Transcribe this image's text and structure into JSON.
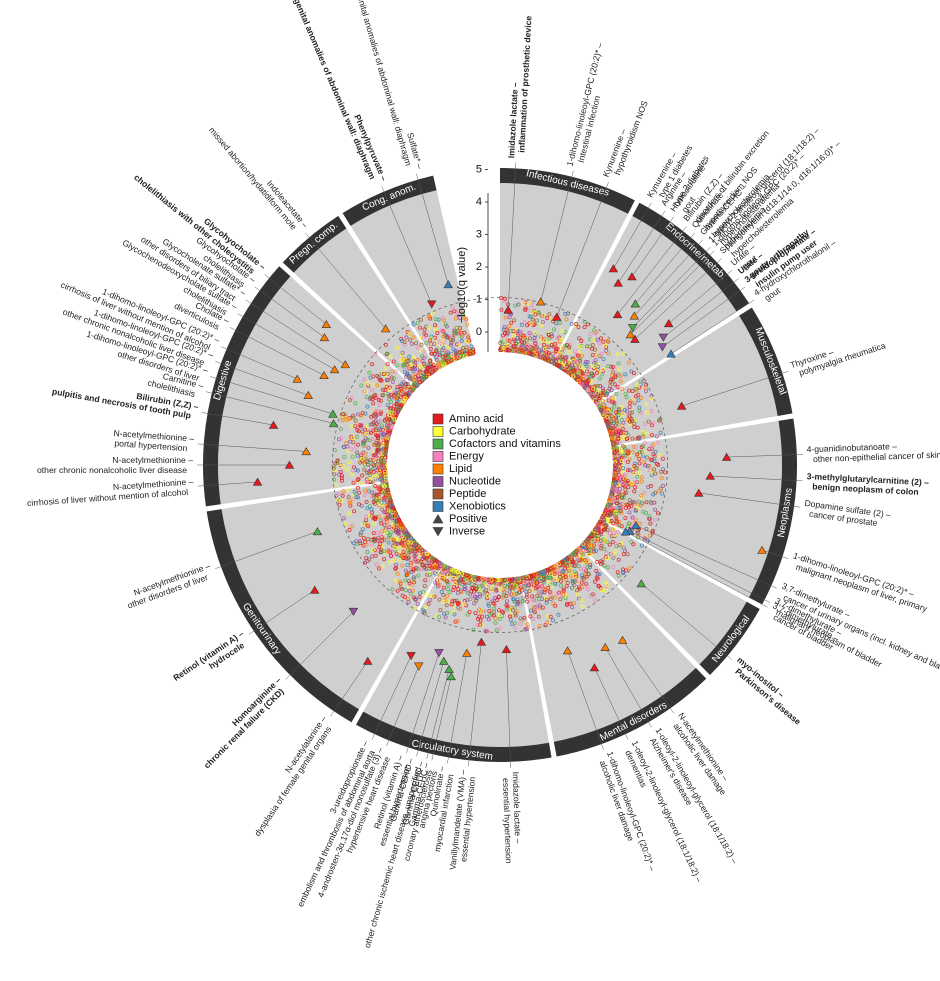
{
  "chart_data": {
    "type": "circular-manhattan",
    "y_axis_label": "−log10(q value)",
    "y_ticks": [
      0,
      1,
      2,
      3,
      4,
      5
    ],
    "y_range": [
      0,
      5.2
    ],
    "threshold": 1,
    "legend": {
      "categories": [
        {
          "name": "Amino acid",
          "color": "#e41a1c"
        },
        {
          "name": "Carbohydrate",
          "color": "#ffff33"
        },
        {
          "name": "Cofactors and vitamins",
          "color": "#4daf4a"
        },
        {
          "name": "Energy",
          "color": "#f781bf"
        },
        {
          "name": "Lipid",
          "color": "#ff7f00"
        },
        {
          "name": "Nucleotide",
          "color": "#984ea3"
        },
        {
          "name": "Peptide",
          "color": "#a65628"
        },
        {
          "name": "Xenobiotics",
          "color": "#377eb8"
        }
      ],
      "directions": [
        {
          "name": "Positive",
          "shape": "triangle-up"
        },
        {
          "name": "Inverse",
          "shape": "triangle-down"
        }
      ]
    },
    "segments": [
      {
        "name": "Infectious diseases",
        "start": 0,
        "end": 27
      },
      {
        "name": "Endocrine/metab.",
        "start": 28,
        "end": 57
      },
      {
        "name": "Musculoskeletal",
        "start": 58,
        "end": 80
      },
      {
        "name": "Neoplasms",
        "start": 81,
        "end": 118
      },
      {
        "name": "Neurological",
        "start": 119,
        "end": 135
      },
      {
        "name": "Mental disorders",
        "start": 136,
        "end": 169
      },
      {
        "name": "Circulatory system",
        "start": 170,
        "end": 209
      },
      {
        "name": "Genitourinary",
        "start": 210,
        "end": 261
      },
      {
        "name": "Digestive",
        "start": 262,
        "end": 312
      },
      {
        "name": "Pregn. comp.",
        "start": 313,
        "end": 327
      },
      {
        "name": "Cong. anom.",
        "start": 328,
        "end": 347
      }
    ],
    "hits": [
      {
        "angle": 3,
        "value": 1.3,
        "category": "Amino acid",
        "direction": "Positive",
        "metabolite": "Imidazole lactate",
        "disease": "inflammation of prosthetic device",
        "bold": true
      },
      {
        "angle": 14,
        "value": 1.7,
        "category": "Lipid",
        "direction": "Positive",
        "metabolite": "1-dihomo-linoleoyl-GPC (20:2)*",
        "disease": "Intestinal infection",
        "bold": false
      },
      {
        "angle": 21,
        "value": 1.4,
        "category": "Amino acid",
        "direction": "Positive",
        "metabolite": "Kynurenine",
        "disease": "hypothyroidism NOS",
        "bold": false
      },
      {
        "angle": 30,
        "value": 3.5,
        "category": "Amino acid",
        "direction": "Positive",
        "metabolite": "Kynurenine",
        "disease": "type 1 diabetes",
        "bold": false
      },
      {
        "angle": 33,
        "value": 3.2,
        "category": "Amino acid",
        "direction": "Positive",
        "metabolite": "Arginine",
        "disease": "type 2 diabetes",
        "bold": false
      },
      {
        "angle": 35,
        "value": 3.6,
        "category": "Amino acid",
        "direction": "Positive",
        "metabolite": "Homocitrulline",
        "disease": "gout",
        "bold": false
      },
      {
        "angle": 38,
        "value": 2.4,
        "category": "Amino acid",
        "direction": "Positive",
        "metabolite": "Bilirubin (Z,Z)",
        "disease": "disorders of bilirubin excretion",
        "bold": false
      },
      {
        "angle": 40,
        "value": 3.0,
        "category": "Cofactors and vitamins",
        "direction": "Positive",
        "metabolite": "Quinolinate",
        "disease": "hypothyroidism NOS",
        "bold": false
      },
      {
        "angle": 42,
        "value": 2.7,
        "category": "Lipid",
        "direction": "Positive",
        "metabolite": "Gamma-CEHC",
        "disease": "hypercholesterolemia",
        "bold": false
      },
      {
        "angle": 44,
        "value": 2.4,
        "category": "Cofactors and vitamins",
        "direction": "Inverse",
        "metabolite": "1-oleoyl-2-linoleoyl-glycerol (18:1/18:2)",
        "disease": "hypercholesterolemia",
        "bold": false
      },
      {
        "angle": 45,
        "value": 2.2,
        "category": "Lipid",
        "direction": "Positive",
        "metabolite": "1-dihomo-linoleoyl-GPC (20:2)*",
        "disease": "hyperlipidemia",
        "bold": false
      },
      {
        "angle": 47,
        "value": 2.2,
        "category": "Amino acid",
        "direction": "Positive",
        "metabolite": "Sphingomyelin (d18:1/14:0, d16:1/16:0)*",
        "disease": "hypercholesterolemia",
        "bold": false
      },
      {
        "angle": 50,
        "value": 3.3,
        "category": "Amino acid",
        "direction": "Positive",
        "metabolite": "Urate",
        "disease": "gout",
        "bold": false
      },
      {
        "angle": 52,
        "value": 2.9,
        "category": "Nucleotide",
        "direction": "Inverse",
        "metabolite": "Urate",
        "disease": "gouty arthropathy",
        "bold": true
      },
      {
        "angle": 54,
        "value": 2.7,
        "category": "Nucleotide",
        "direction": "Inverse",
        "metabolite": "3-ureidopropionate",
        "disease": "insulin pump user",
        "bold": true
      },
      {
        "angle": 57,
        "value": 2.8,
        "category": "Xenobiotics",
        "direction": "Positive",
        "metabolite": "4-hydroxychlorothalonil",
        "disease": "gout",
        "bold": false
      },
      {
        "angle": 72,
        "value": 2.4,
        "category": "Amino acid",
        "direction": "Positive",
        "metabolite": "Thyroxine",
        "disease": "polymyalgia rheumatica",
        "bold": false
      },
      {
        "angle": 88,
        "value": 3.5,
        "category": "Amino acid",
        "direction": "Positive",
        "metabolite": "4-guanidinobutanoate",
        "disease": "other non-epithelial cancer of skin",
        "bold": false
      },
      {
        "angle": 93,
        "value": 3.0,
        "category": "Amino acid",
        "direction": "Positive",
        "metabolite": "3-methylglutarylcarnitine (2)",
        "disease": "benign neoplasm of colon",
        "bold": true
      },
      {
        "angle": 98,
        "value": 2.7,
        "category": "Amino acid",
        "direction": "Positive",
        "metabolite": "Dopamine sulfate (2)",
        "disease": "cancer of prostate",
        "bold": false
      },
      {
        "angle": 108,
        "value": 5.0,
        "category": "Lipid",
        "direction": "Positive",
        "metabolite": "1-dihomo-linoleoyl-GPC (20:2)*",
        "disease": "malignant neoplasm of liver, primary",
        "bold": false
      },
      {
        "angle": 114,
        "value": 1.1,
        "category": "Xenobiotics",
        "direction": "Positive",
        "metabolite": "3,7-dimethylurate",
        "disease": "cancer of urinary organs (incl. kidney and bladder)",
        "bold": false
      },
      {
        "angle": 117,
        "value": 1.0,
        "category": "Xenobiotics",
        "direction": "Positive",
        "metabolite": "3,7-dimethylurate",
        "disease": "malignant neoplasm of bladder",
        "bold": false
      },
      {
        "angle": 118,
        "value": 0.9,
        "category": "Xenobiotics",
        "direction": "Positive",
        "metabolite": "3,7-dimethylurate",
        "disease": "cancer of bladder",
        "bold": false
      },
      {
        "angle": 130,
        "value": 2.2,
        "category": "Cofactors and vitamins",
        "direction": "Positive",
        "metabolite": "myo-inositol",
        "disease": "Parkinson's disease",
        "bold": true
      },
      {
        "angle": 145,
        "value": 3.1,
        "category": "Lipid",
        "direction": "Positive",
        "metabolite": "N-acetylmethionine",
        "disease": "alcoholic liver damage",
        "bold": false
      },
      {
        "angle": 150,
        "value": 3.0,
        "category": "Lipid",
        "direction": "Positive",
        "metabolite": "1-oleoyl-2-linoleoyl-glycerol (18:1/18:2)",
        "disease": "Alzheimer's disease",
        "bold": false
      },
      {
        "angle": 155,
        "value": 3.4,
        "category": "Amino acid",
        "direction": "Positive",
        "metabolite": "1-oleoyl-2-linoleoyl-glycerol (18:1/18:2)",
        "disease": "dementias",
        "bold": false
      },
      {
        "angle": 160,
        "value": 2.6,
        "category": "Lipid",
        "direction": "Positive",
        "metabolite": "1-dihomo-linoleoyl-GPC (20:2)*",
        "disease": "alcoholic liver damage",
        "bold": false
      },
      {
        "angle": 178,
        "value": 2.2,
        "category": "Amino acid",
        "direction": "Positive",
        "metabolite": "Imidazole lactate",
        "disease": "essential hypertension",
        "bold": false
      },
      {
        "angle": 186,
        "value": 2.0,
        "category": "Amino acid",
        "direction": "Positive",
        "metabolite": "Vanillylmandelate (VMA)",
        "disease": "essential hypertension",
        "bold": false
      },
      {
        "angle": 190,
        "value": 2.4,
        "category": "Lipid",
        "direction": "Positive",
        "metabolite": "Quinolinate",
        "disease": "myocardial infarction",
        "bold": false
      },
      {
        "angle": 193,
        "value": 3.2,
        "category": "Cofactors and vitamins",
        "direction": "Positive",
        "metabolite": "Gamma-CEHC",
        "disease": "angina pectoris",
        "bold": false
      },
      {
        "angle": 194,
        "value": 3.0,
        "category": "Cofactors and vitamins",
        "direction": "Positive",
        "metabolite": "Gamma-CEHC",
        "disease": "coronary atherosclerosis",
        "bold": false
      },
      {
        "angle": 196,
        "value": 2.8,
        "category": "Cofactors and vitamins",
        "direction": "Positive",
        "metabolite": "Gamma-CEHC",
        "disease": "other chronic ischemic heart disease, unspecified",
        "bold": false
      },
      {
        "angle": 198,
        "value": 2.6,
        "category": "Nucleotide",
        "direction": "Inverse",
        "metabolite": "Retinol (vitamin A)",
        "disease": "essential hypertension",
        "bold": false
      },
      {
        "angle": 202,
        "value": 3.2,
        "category": "Lipid",
        "direction": "Inverse",
        "metabolite": "4-androsten-3α,17α-diol monosulfate (3)",
        "disease": "hypertensive heart disease",
        "bold": false
      },
      {
        "angle": 205,
        "value": 3.0,
        "category": "Amino acid",
        "direction": "Inverse",
        "metabolite": "3-ureidopropionate",
        "disease": "embolism and thrombosis of abdominal aorta",
        "bold": false
      },
      {
        "angle": 214,
        "value": 3.8,
        "category": "Amino acid",
        "direction": "Positive",
        "metabolite": "N-acetylalanine",
        "disease": "dysplasia of female genital organs",
        "bold": false
      },
      {
        "angle": 225,
        "value": 2.9,
        "category": "Nucleotide",
        "direction": "Inverse",
        "metabolite": "Homoarginine",
        "disease": "chronic renal failure (CKD)",
        "bold": true
      },
      {
        "angle": 236,
        "value": 3.4,
        "category": "Amino acid",
        "direction": "Positive",
        "metabolite": "Retinol (vitamin A)",
        "disease": "hydrocele",
        "bold": true
      },
      {
        "angle": 250,
        "value": 2.5,
        "category": "Cofactors and vitamins",
        "direction": "Positive",
        "metabolite": "N-acetylmethionine",
        "disease": "other disorders of liver",
        "bold": false
      },
      {
        "angle": 266,
        "value": 4.0,
        "category": "Amino acid",
        "direction": "Positive",
        "metabolite": "N-acetylmethionine",
        "disease": "cirrhosis of liver without mention of alcohol",
        "bold": false
      },
      {
        "angle": 270,
        "value": 3.0,
        "category": "Amino acid",
        "direction": "Positive",
        "metabolite": "N-acetylmethionine",
        "disease": "other chronic nonalcoholic liver disease",
        "bold": false
      },
      {
        "angle": 274,
        "value": 2.5,
        "category": "Lipid",
        "direction": "Positive",
        "metabolite": "N-acetylmethionine",
        "disease": "portal hypertension",
        "bold": false
      },
      {
        "angle": 280,
        "value": 3.6,
        "category": "Amino acid",
        "direction": "Positive",
        "metabolite": "Bilirubin (Z,Z)",
        "disease": "pulpitis and necrosis of tooth pulp",
        "bold": true
      },
      {
        "angle": 284,
        "value": 1.8,
        "category": "Cofactors and vitamins",
        "direction": "Positive",
        "metabolite": "Carnitine",
        "disease": "cholelithiasis",
        "bold": false
      },
      {
        "angle": 287,
        "value": 1.9,
        "category": "Cofactors and vitamins",
        "direction": "Positive",
        "metabolite": "1-dihomo-linoleoyl-GPC (20:2)*",
        "disease": "other disorders of liver",
        "bold": false
      },
      {
        "angle": 290,
        "value": 2.8,
        "category": "Lipid",
        "direction": "Positive",
        "metabolite": "1-dihomo-linoleoyl-GPC (20:2)*",
        "disease": "other chronic nonalcoholic liver disease",
        "bold": false
      },
      {
        "angle": 293,
        "value": 3.3,
        "category": "Lipid",
        "direction": "Positive",
        "metabolite": "1-dihomo-linoleoyl-GPC (20:2)*",
        "disease": "cirrhosis of liver without mention of alcohol",
        "bold": false
      },
      {
        "angle": 297,
        "value": 2.6,
        "category": "Lipid",
        "direction": "Positive",
        "metabolite": "Cholate",
        "disease": "diverticulosis",
        "bold": false
      },
      {
        "angle": 300,
        "value": 2.4,
        "category": "Lipid",
        "direction": "Positive",
        "metabolite": "Glycochenodeoxycholate sulfate",
        "disease": "cholelithiasis",
        "bold": false
      },
      {
        "angle": 303,
        "value": 2.2,
        "category": "Lipid",
        "direction": "Positive",
        "metabolite": "Glycocholenate sulfate*",
        "disease": "other disorders of biliary tract",
        "bold": false
      },
      {
        "angle": 306,
        "value": 3.2,
        "category": "Lipid",
        "direction": "Positive",
        "metabolite": "Glycohyocholate",
        "disease": "cholelithiasis",
        "bold": false
      },
      {
        "angle": 309,
        "value": 3.4,
        "category": "Lipid",
        "direction": "Positive",
        "metabolite": "Glycohyocholate",
        "disease": "cholelithiasis with other cholecystitis",
        "bold": true
      },
      {
        "angle": 320,
        "value": 2.0,
        "category": "Lipid",
        "direction": "Positive",
        "metabolite": "Indoleacetate",
        "disease": "missed abortion/hydatidiform mole",
        "bold": false
      },
      {
        "angle": 337,
        "value": 1.9,
        "category": "Amino acid",
        "direction": "Inverse",
        "metabolite": "Phenylpyruvate",
        "disease": "congenital anomalies of abdominal wall: diaphragm",
        "bold": true
      },
      {
        "angle": 344,
        "value": 2.3,
        "category": "Xenobiotics",
        "direction": "Positive",
        "metabolite": "Sulfate*",
        "disease": "congenital anomalies of abdominal wall: diaphragm",
        "bold": false
      }
    ]
  }
}
